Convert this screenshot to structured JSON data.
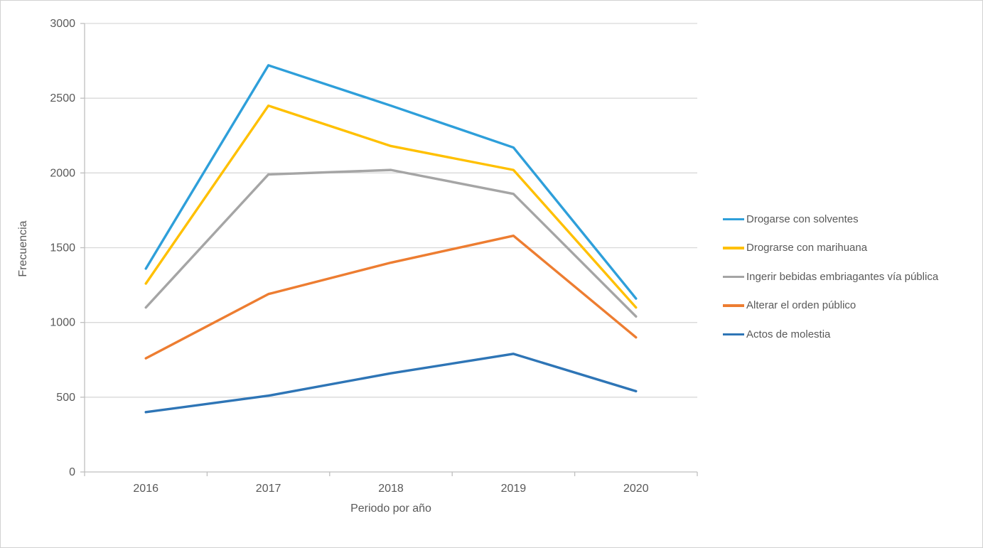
{
  "chart_data": {
    "type": "line",
    "title": "",
    "xlabel": "Periodo por año",
    "ylabel": "Frecuencia",
    "categories": [
      "2016",
      "2017",
      "2018",
      "2019",
      "2020"
    ],
    "ylim": [
      0,
      3000
    ],
    "yticks": [
      0,
      500,
      1000,
      1500,
      2000,
      2500,
      3000
    ],
    "grid": true,
    "legend_position": "right",
    "colors": {
      "gridline": "#d9d9d9",
      "axis": "#bfbfbf",
      "tick_text": "#595959"
    },
    "series": [
      {
        "name": "Drogarse con solventes",
        "color": "#2E9FDA",
        "values": [
          1360,
          2720,
          2450,
          2170,
          1160
        ]
      },
      {
        "name": "Drograrse con marihuana",
        "color": "#FFC000",
        "values": [
          1260,
          2450,
          2180,
          2020,
          1100
        ]
      },
      {
        "name": "Ingerir bebidas embriagantes vía pública",
        "color": "#A5A5A5",
        "values": [
          1100,
          1990,
          2020,
          1860,
          1040
        ]
      },
      {
        "name": "Alterar el orden público",
        "color": "#ED7D31",
        "values": [
          760,
          1190,
          1400,
          1580,
          900
        ]
      },
      {
        "name": "Actos de molestia",
        "color": "#2E75B6",
        "values": [
          400,
          510,
          660,
          790,
          540
        ]
      }
    ]
  }
}
